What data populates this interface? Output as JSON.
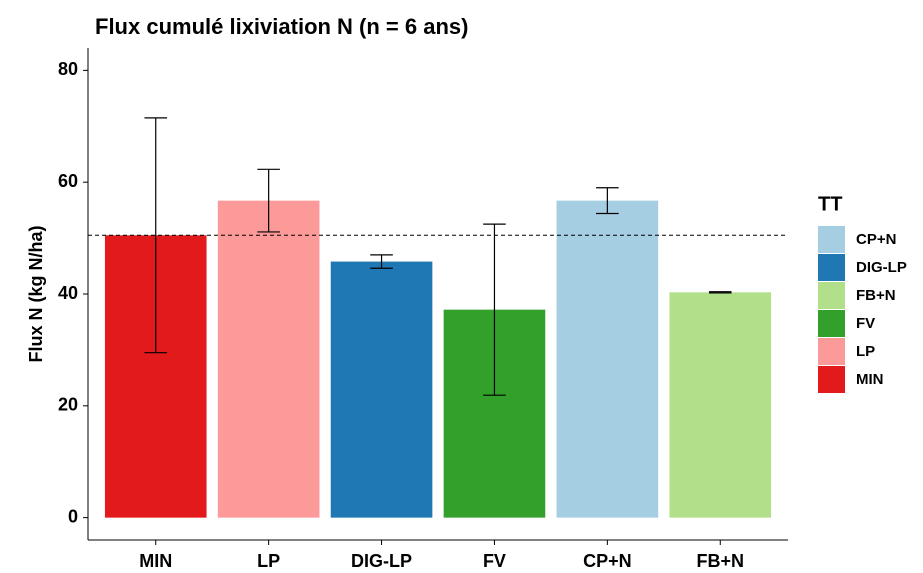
{
  "chart_data": {
    "type": "bar",
    "title": "Flux cumulé lixiviation N (n = 6 ans)",
    "y_label": "Flux N (kg N/ha)",
    "categories": [
      "MIN",
      "LP",
      "DIG-LP",
      "FV",
      "CP+N",
      "FB+N"
    ],
    "values": [
      50.5,
      56.7,
      45.8,
      37.2,
      56.7,
      40.3
    ],
    "errors": [
      21,
      5.6,
      1.2,
      15.3,
      2.3,
      0.1
    ],
    "colors": [
      "#e31a1c",
      "#fb9a99",
      "#1f78b4",
      "#33a02c",
      "#a6cee3",
      "#b2df8a"
    ],
    "hline": 50.5,
    "ylim": [
      -4,
      84
    ],
    "yticks": [
      0,
      20,
      40,
      60,
      80
    ],
    "legend": {
      "title": "TT",
      "position": "right",
      "entries": [
        {
          "label": "CP+N",
          "color": "#a6cee3"
        },
        {
          "label": "DIG-LP",
          "color": "#1f78b4"
        },
        {
          "label": "FB+N",
          "color": "#b2df8a"
        },
        {
          "label": "FV",
          "color": "#33a02c"
        },
        {
          "label": "LP",
          "color": "#fb9a99"
        },
        {
          "label": "MIN",
          "color": "#e31a1c"
        }
      ]
    }
  }
}
